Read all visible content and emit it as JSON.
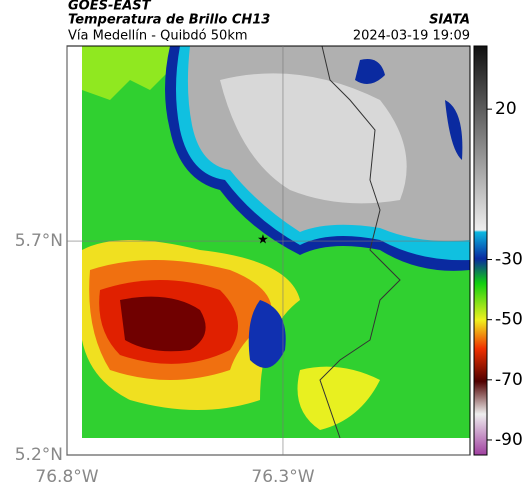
{
  "header": {
    "source": "GOES-EAST",
    "title": "Temperatura de Brillo CH13",
    "subtitle": "Vía Medellín - Quibdó 50km",
    "org": "SIATA",
    "datetime": "2024-03-19 19:09"
  },
  "map": {
    "lonlim": [
      -76.8,
      -75.867
    ],
    "latlim": [
      5.2,
      6.156
    ],
    "lon_ticks": [
      {
        "value": -76.8,
        "label": "76.8°W"
      },
      {
        "value": -76.3,
        "label": "76.3°W"
      }
    ],
    "lat_ticks": [
      {
        "value": 5.7,
        "label": "5.7°N"
      },
      {
        "value": 5.2,
        "label": "5.2°N"
      }
    ]
  },
  "colorbar": {
    "range": [
      -95,
      41
    ],
    "ticks": [
      20,
      -30,
      -50,
      -70,
      -90
    ]
  }
}
